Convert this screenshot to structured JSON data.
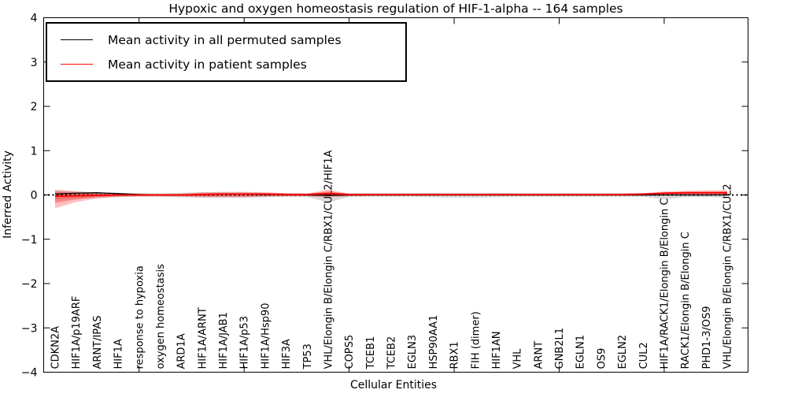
{
  "figure": {
    "title": "Hypoxic and oxygen homeostasis regulation of HIF-1-alpha -- 164 samples",
    "xlabel": "Cellular Entities",
    "ylabel": "Inferred Activity"
  },
  "chart_data": {
    "type": "line",
    "title": "Hypoxic and oxygen homeostasis regulation of HIF-1-alpha -- 164 samples",
    "xlabel": "Cellular Entities",
    "ylabel": "Inferred Activity",
    "ylim": [
      -4,
      4
    ],
    "ytick_values": [
      4,
      3,
      2,
      1,
      0,
      -1,
      -2,
      -3,
      -4
    ],
    "ytick_labels": [
      "4",
      "3",
      "2",
      "1",
      "0",
      "−1",
      "−2",
      "−3",
      "−4"
    ],
    "xtick_major_indices": [
      4,
      9,
      14,
      19,
      24,
      29
    ],
    "grid": false,
    "legend_position": "upper left",
    "categories": [
      "CDKN2A",
      "HIF1A/p19ARF",
      "ARNT/IPAS",
      "HIF1A",
      "response to hypoxia",
      "oxygen homeostasis",
      "ARD1A",
      "HIF1A/ARNT",
      "HIF1A/JAB1",
      "HIF1A/p53",
      "HIF1A/Hsp90",
      "HIF3A",
      "TP53",
      "VHL/Elongin B/Elongin C/RBX1/CUL2/HIF1A",
      "COPS5",
      "TCEB1",
      "TCEB2",
      "EGLN3",
      "HSP90AA1",
      "RBX1",
      "FIH (dimer)",
      "HIF1AN",
      "VHL",
      "ARNT",
      "GNB2L1",
      "EGLN1",
      "OS9",
      "EGLN2",
      "CUL2",
      "HIF1A/RACK1/Elongin B/Elongin C",
      "RACK1/Elongin B/Elongin C",
      "PHD1-3/OS9",
      "VHL/Elongin B/Elongin C/RBX1/CUL2"
    ],
    "series": [
      {
        "name": "Mean activity in all permuted samples",
        "color": "#000000",
        "line_width": 1.3,
        "values": [
          0.02,
          0.04,
          0.05,
          0.03,
          0.01,
          0.0,
          0.0,
          0.01,
          0.02,
          0.02,
          0.01,
          0.01,
          0.0,
          -0.01,
          0.0,
          0.0,
          0.0,
          0.0,
          0.0,
          0.0,
          0.0,
          0.0,
          0.0,
          0.0,
          0.0,
          0.0,
          0.0,
          0.0,
          0.0,
          0.0,
          0.0,
          0.0,
          0.0
        ]
      },
      {
        "name": "Mean activity in patient samples",
        "color": "#ff0000",
        "line_width": 1.8,
        "values": [
          -0.03,
          -0.02,
          -0.01,
          0.0,
          0.0,
          0.0,
          0.0,
          0.01,
          0.02,
          0.02,
          0.02,
          0.01,
          0.01,
          0.03,
          0.01,
          0.01,
          0.01,
          0.01,
          0.01,
          0.01,
          0.01,
          0.01,
          0.01,
          0.01,
          0.01,
          0.01,
          0.01,
          0.01,
          0.02,
          0.04,
          0.05,
          0.05,
          0.05
        ]
      }
    ],
    "bands": [
      {
        "name": "permuted-samples-band",
        "color": "#000000",
        "opacity": 0.15,
        "hi": [
          0.1,
          0.08,
          0.06,
          0.05,
          0.04,
          0.04,
          0.05,
          0.06,
          0.06,
          0.06,
          0.05,
          0.04,
          0.04,
          0.06,
          0.04,
          0.04,
          0.04,
          0.04,
          0.05,
          0.05,
          0.05,
          0.05,
          0.04,
          0.04,
          0.04,
          0.04,
          0.04,
          0.04,
          0.04,
          0.04,
          0.04,
          0.05,
          0.06
        ],
        "lo": [
          -0.1,
          -0.08,
          -0.06,
          -0.05,
          -0.04,
          -0.04,
          -0.05,
          -0.06,
          -0.06,
          -0.06,
          -0.05,
          -0.04,
          -0.04,
          -0.17,
          -0.04,
          -0.04,
          -0.04,
          -0.04,
          -0.05,
          -0.06,
          -0.06,
          -0.05,
          -0.04,
          -0.04,
          -0.04,
          -0.04,
          -0.04,
          -0.04,
          -0.04,
          -0.1,
          -0.05,
          -0.05,
          -0.06
        ]
      },
      {
        "name": "patient-samples-band-outer",
        "color": "#ff0000",
        "opacity": 0.25,
        "hi": [
          0.12,
          0.08,
          0.05,
          0.03,
          0.02,
          0.02,
          0.03,
          0.06,
          0.07,
          0.07,
          0.06,
          0.04,
          0.03,
          0.12,
          0.03,
          0.03,
          0.03,
          0.03,
          0.03,
          0.03,
          0.03,
          0.03,
          0.03,
          0.03,
          0.03,
          0.03,
          0.03,
          0.03,
          0.04,
          0.08,
          0.09,
          0.1,
          0.11
        ],
        "lo": [
          -0.3,
          -0.16,
          -0.08,
          -0.04,
          -0.03,
          -0.03,
          -0.04,
          -0.05,
          -0.05,
          -0.05,
          -0.04,
          -0.03,
          -0.03,
          -0.05,
          -0.03,
          -0.02,
          -0.02,
          -0.02,
          -0.02,
          -0.02,
          -0.02,
          -0.02,
          -0.02,
          -0.02,
          -0.02,
          -0.02,
          -0.02,
          -0.02,
          -0.02,
          0.0,
          0.0,
          0.01,
          0.0
        ]
      },
      {
        "name": "patient-samples-band-inner",
        "color": "#ff0000",
        "opacity": 0.3,
        "hi": [
          0.07,
          0.05,
          0.03,
          0.02,
          0.01,
          0.01,
          0.02,
          0.04,
          0.04,
          0.04,
          0.04,
          0.03,
          0.02,
          0.08,
          0.02,
          0.02,
          0.02,
          0.02,
          0.02,
          0.02,
          0.02,
          0.02,
          0.02,
          0.02,
          0.02,
          0.02,
          0.02,
          0.02,
          0.03,
          0.06,
          0.07,
          0.07,
          0.08
        ],
        "lo": [
          -0.18,
          -0.1,
          -0.05,
          -0.03,
          -0.02,
          -0.02,
          -0.02,
          -0.03,
          -0.03,
          -0.03,
          -0.02,
          -0.02,
          -0.02,
          -0.02,
          -0.02,
          -0.01,
          -0.01,
          -0.01,
          -0.01,
          -0.01,
          -0.01,
          -0.01,
          -0.01,
          -0.01,
          -0.01,
          -0.01,
          -0.01,
          -0.01,
          -0.01,
          0.01,
          0.02,
          0.02,
          0.02
        ]
      }
    ],
    "zero_line": {
      "y": 0,
      "style": "dotted",
      "color": "#000000"
    }
  }
}
